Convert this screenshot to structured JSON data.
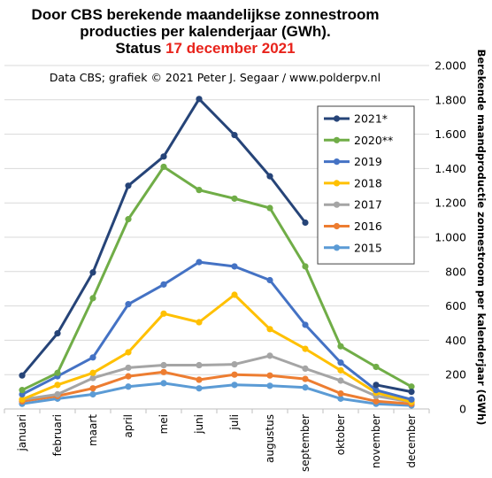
{
  "title": {
    "line1": "Door CBS berekende maandelijkse  zonnestroom",
    "line2": "producties per kalenderjaar (GWh).",
    "line3_prefix": "Status ",
    "line3_highlight": "17 december 2021"
  },
  "subtitle": "Data CBS; grafiek © 2021 Peter J. Segaar / www.polderpv.nl",
  "colors": {
    "title_highlight": "#e8231b",
    "grid": "#d9d9d9",
    "axis": "#bfbfbf"
  },
  "chart_data": {
    "type": "line",
    "title": "Door CBS berekende maandelijkse  zonnestroom producties per kalenderjaar (GWh).",
    "ylabel": "Berekende maandproductie zonnestroom per kalenderjaar (GWh)",
    "xlabel": "",
    "ylim": [
      0,
      2000
    ],
    "y_ticks": [
      0,
      200,
      400,
      600,
      800,
      1000,
      1200,
      1400,
      1600,
      1800,
      2000
    ],
    "y_tick_labels": [
      "0",
      "200",
      "400",
      "600",
      "800",
      "1.000",
      "1.200",
      "1.400",
      "1.600",
      "1.800",
      "2.000"
    ],
    "y_axis_side": "right",
    "grid": "horizontal",
    "legend_position": "top-right inside",
    "categories": [
      "januari",
      "februari",
      "maart",
      "april",
      "mei",
      "juni",
      "juli",
      "augustus",
      "september",
      "oktober",
      "november",
      "december"
    ],
    "series": [
      {
        "name": "2015",
        "color": "#5b9bd5",
        "values": [
          30,
          60,
          85,
          130,
          150,
          120,
          140,
          135,
          125,
          60,
          30,
          20
        ]
      },
      {
        "name": "2016",
        "color": "#ed7d31",
        "values": [
          45,
          75,
          120,
          190,
          215,
          170,
          200,
          195,
          175,
          90,
          45,
          30
        ]
      },
      {
        "name": "2017",
        "color": "#a5a5a5",
        "values": [
          55,
          85,
          180,
          240,
          255,
          255,
          260,
          310,
          235,
          165,
          75,
          40
        ]
      },
      {
        "name": "2018",
        "color": "#ffc000",
        "values": [
          55,
          140,
          210,
          330,
          555,
          505,
          665,
          465,
          350,
          225,
          95,
          40
        ]
      },
      {
        "name": "2019",
        "color": "#4472c4",
        "values": [
          85,
          190,
          300,
          610,
          725,
          855,
          830,
          750,
          490,
          270,
          110,
          55
        ]
      },
      {
        "name": "2020**",
        "color": "#70ad47",
        "values": [
          110,
          210,
          645,
          1105,
          1410,
          1275,
          1225,
          1170,
          830,
          365,
          245,
          130
        ]
      },
      {
        "name": "2021*",
        "color": "#264478",
        "values": [
          195,
          440,
          795,
          1300,
          1470,
          1805,
          1595,
          1355,
          1085,
          null,
          140,
          100
        ]
      }
    ]
  }
}
